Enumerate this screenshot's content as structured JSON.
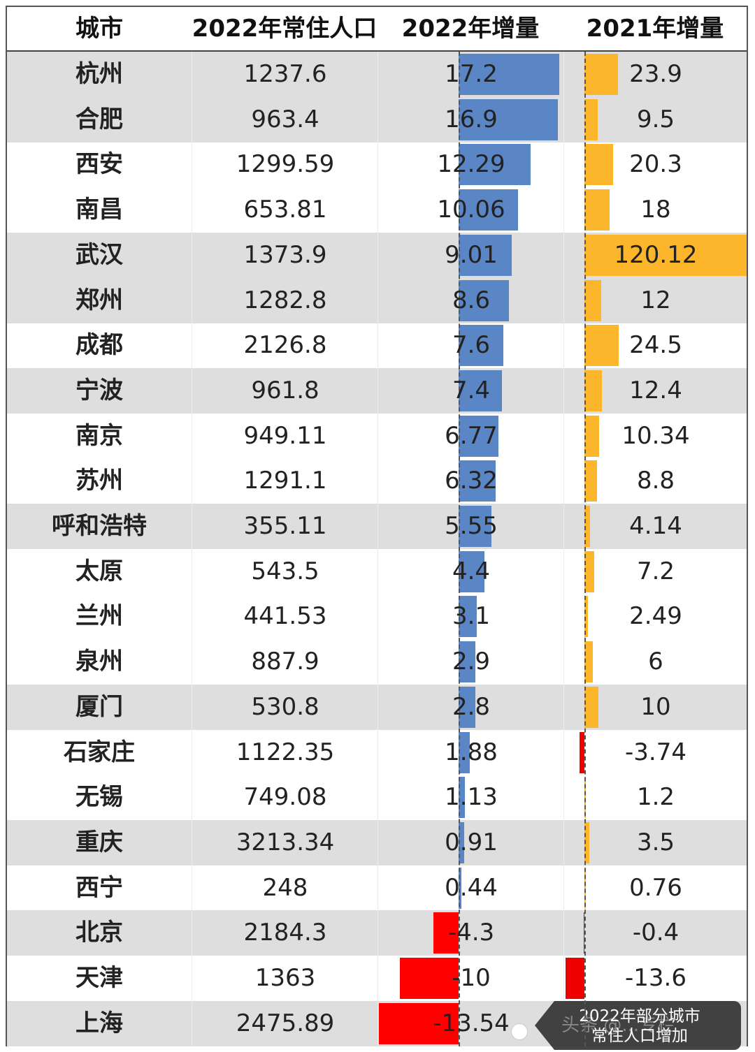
{
  "headers": {
    "city": "城市",
    "pop2022": "2022年常住人口",
    "inc2022": "2022年增量",
    "inc2021": "2021年增量"
  },
  "colors": {
    "positive2022": "#5b86c5",
    "negative": "#ff0000",
    "positive2021": "#fbb62c",
    "shade": "#dedede"
  },
  "chart_data": {
    "type": "table",
    "columns": [
      "城市",
      "2022年常住人口",
      "2022年增量",
      "2021年增量"
    ],
    "rows": [
      {
        "city": "杭州",
        "pop2022": "1237.6",
        "inc2022": "17.2",
        "inc2021": "23.9"
      },
      {
        "city": "合肥",
        "pop2022": "963.4",
        "inc2022": "16.9",
        "inc2021": "9.5"
      },
      {
        "city": "西安",
        "pop2022": "1299.59",
        "inc2022": "12.29",
        "inc2021": "20.3"
      },
      {
        "city": "南昌",
        "pop2022": "653.81",
        "inc2022": "10.06",
        "inc2021": "18"
      },
      {
        "city": "武汉",
        "pop2022": "1373.9",
        "inc2022": "9.01",
        "inc2021": "120.12"
      },
      {
        "city": "郑州",
        "pop2022": "1282.8",
        "inc2022": "8.6",
        "inc2021": "12"
      },
      {
        "city": "成都",
        "pop2022": "2126.8",
        "inc2022": "7.6",
        "inc2021": "24.5"
      },
      {
        "city": "宁波",
        "pop2022": "961.8",
        "inc2022": "7.4",
        "inc2021": "12.4"
      },
      {
        "city": "南京",
        "pop2022": "949.11",
        "inc2022": "6.77",
        "inc2021": "10.34"
      },
      {
        "city": "苏州",
        "pop2022": "1291.1",
        "inc2022": "6.32",
        "inc2021": "8.8"
      },
      {
        "city": "呼和浩特",
        "pop2022": "355.11",
        "inc2022": "5.55",
        "inc2021": "4.14"
      },
      {
        "city": "太原",
        "pop2022": "543.5",
        "inc2022": "4.4",
        "inc2021": "7.2"
      },
      {
        "city": "兰州",
        "pop2022": "441.53",
        "inc2022": "3.1",
        "inc2021": "2.49"
      },
      {
        "city": "泉州",
        "pop2022": "887.9",
        "inc2022": "2.9",
        "inc2021": "6"
      },
      {
        "city": "厦门",
        "pop2022": "530.8",
        "inc2022": "2.8",
        "inc2021": "10"
      },
      {
        "city": "石家庄",
        "pop2022": "1122.35",
        "inc2022": "1.88",
        "inc2021": "-3.74"
      },
      {
        "city": "无锡",
        "pop2022": "749.08",
        "inc2022": "1.13",
        "inc2021": "1.2"
      },
      {
        "city": "重庆",
        "pop2022": "3213.34",
        "inc2022": "0.91",
        "inc2021": "3.5"
      },
      {
        "city": "西宁",
        "pop2022": "248",
        "inc2022": "0.44",
        "inc2021": "0.76"
      },
      {
        "city": "北京",
        "pop2022": "2184.3",
        "inc2022": "-4.3",
        "inc2021": "-0.4"
      },
      {
        "city": "天津",
        "pop2022": "1363",
        "inc2022": "-10",
        "inc2021": "-13.6"
      },
      {
        "city": "上海",
        "pop2022": "2475.89",
        "inc2022": "-13.54",
        "inc2021": ""
      }
    ],
    "shaded_rows": [
      0,
      1,
      4,
      5,
      7,
      10,
      14,
      17,
      19,
      21
    ]
  },
  "caption": {
    "line1": "2022年部分城市",
    "line2": "常住人口增加",
    "watermark": "头条 @...专栏"
  }
}
